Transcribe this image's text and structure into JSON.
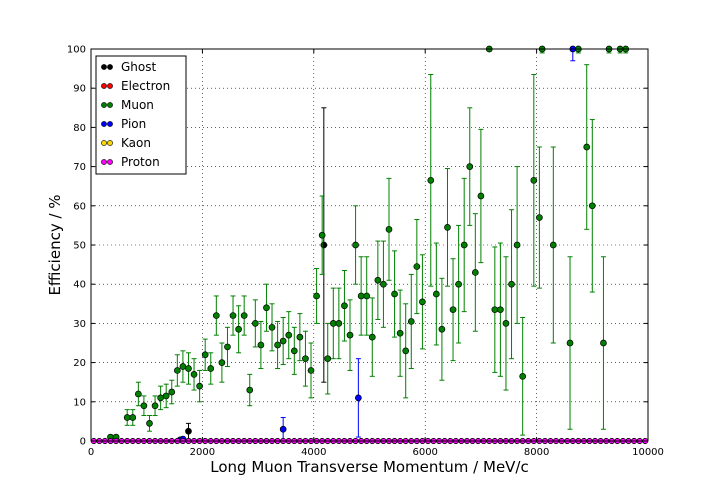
{
  "chart_data": {
    "type": "scatter",
    "xlabel": "Long Muon Transverse Momentum / MeV/c",
    "ylabel": "Efficiency / %",
    "xlim": [
      0,
      10000
    ],
    "ylim": [
      0,
      100
    ],
    "xticks": [
      0,
      2000,
      4000,
      6000,
      8000,
      10000
    ],
    "yticks": [
      0,
      10,
      20,
      30,
      40,
      50,
      60,
      70,
      80,
      90,
      100
    ],
    "grid": true,
    "legend_position": "top-left",
    "series": [
      {
        "name": "Ghost",
        "color": "#000000",
        "points": [
          [
            1750,
            2.5,
            2,
            2
          ],
          [
            4180,
            50,
            35,
            35
          ]
        ],
        "zero_row": [
          0,
          10000,
          100
        ]
      },
      {
        "name": "Electron",
        "color": "#ff0000",
        "points": [],
        "zero_row": [
          0,
          10000,
          100
        ]
      },
      {
        "name": "Muon",
        "color": "#008000",
        "points": [
          [
            350,
            1,
            0.5,
            0.5
          ],
          [
            450,
            1,
            0.5,
            0.5
          ],
          [
            650,
            6,
            2,
            2
          ],
          [
            750,
            6,
            2,
            2
          ],
          [
            850,
            12,
            3,
            3
          ],
          [
            950,
            9,
            2.5,
            2.5
          ],
          [
            1050,
            4.5,
            2,
            2
          ],
          [
            1150,
            9,
            2.5,
            2.5
          ],
          [
            1250,
            11,
            3,
            3
          ],
          [
            1350,
            11.5,
            3,
            3
          ],
          [
            1450,
            12.5,
            3,
            3
          ],
          [
            1550,
            18,
            4,
            4
          ],
          [
            1650,
            19,
            4,
            4
          ],
          [
            1750,
            18.5,
            4,
            4
          ],
          [
            1850,
            17,
            4,
            4
          ],
          [
            1950,
            14,
            4,
            4
          ],
          [
            2050,
            22,
            4,
            4
          ],
          [
            2150,
            18.5,
            4,
            4
          ],
          [
            2250,
            32,
            5,
            5
          ],
          [
            2350,
            20,
            5,
            5
          ],
          [
            2450,
            24,
            5,
            5
          ],
          [
            2550,
            32,
            5,
            5
          ],
          [
            2650,
            28.5,
            6,
            6
          ],
          [
            2750,
            32,
            5,
            5
          ],
          [
            2850,
            13,
            4,
            4
          ],
          [
            2950,
            30,
            6,
            6
          ],
          [
            3050,
            24.5,
            6,
            6
          ],
          [
            3150,
            34,
            6,
            6
          ],
          [
            3250,
            29,
            6,
            6
          ],
          [
            3350,
            24.5,
            6,
            6
          ],
          [
            3450,
            25.5,
            6,
            6
          ],
          [
            3550,
            27,
            6,
            6
          ],
          [
            3650,
            23,
            6,
            6
          ],
          [
            3750,
            26.5,
            6,
            6
          ],
          [
            3850,
            21,
            7,
            7
          ],
          [
            3950,
            18,
            7,
            7
          ],
          [
            4050,
            37,
            7,
            7
          ],
          [
            4150,
            52.5,
            10,
            10
          ],
          [
            4250,
            21,
            9,
            9
          ],
          [
            4350,
            30,
            9,
            9
          ],
          [
            4450,
            30,
            9,
            9
          ],
          [
            4550,
            34.5,
            9,
            9
          ],
          [
            4650,
            27,
            9,
            9
          ],
          [
            4750,
            50,
            10,
            10
          ],
          [
            4850,
            37,
            10,
            10
          ],
          [
            4950,
            37,
            10,
            10
          ],
          [
            5050,
            26.5,
            10,
            10
          ],
          [
            5150,
            41,
            10,
            10
          ],
          [
            5250,
            40,
            11,
            11
          ],
          [
            5350,
            54,
            13,
            13
          ],
          [
            5450,
            37.5,
            11,
            11
          ],
          [
            5550,
            27.5,
            11,
            11
          ],
          [
            5650,
            23,
            12,
            12
          ],
          [
            5750,
            30.5,
            12,
            12
          ],
          [
            5850,
            44.5,
            12,
            12
          ],
          [
            5950,
            35.5,
            12,
            12
          ],
          [
            6100,
            66.5,
            27,
            27
          ],
          [
            6200,
            37.5,
            13,
            13
          ],
          [
            6300,
            28.5,
            13,
            13
          ],
          [
            6400,
            54.5,
            15,
            15
          ],
          [
            6500,
            33.5,
            13,
            13
          ],
          [
            6600,
            40,
            15,
            15
          ],
          [
            6700,
            50,
            17,
            17
          ],
          [
            6800,
            70,
            15,
            15
          ],
          [
            6900,
            43,
            15,
            15
          ],
          [
            7000,
            62.5,
            17,
            17
          ],
          [
            7150,
            100,
            0.5,
            0
          ],
          [
            7250,
            33.5,
            16,
            16
          ],
          [
            7350,
            33.5,
            17,
            17
          ],
          [
            7450,
            30,
            17,
            17
          ],
          [
            7550,
            40,
            19,
            19
          ],
          [
            7650,
            50,
            20,
            20
          ],
          [
            7750,
            16.5,
            15,
            15
          ],
          [
            7950,
            66.5,
            27,
            27
          ],
          [
            8050,
            57,
            18,
            18
          ],
          [
            8100,
            100,
            1,
            0
          ],
          [
            8300,
            50,
            25,
            25
          ],
          [
            8600,
            25,
            22,
            22
          ],
          [
            8750,
            100,
            1,
            0
          ],
          [
            8900,
            75,
            21,
            21
          ],
          [
            9000,
            60,
            22,
            22
          ],
          [
            9200,
            25,
            22,
            22
          ],
          [
            9300,
            100,
            1,
            0
          ],
          [
            9500,
            100,
            1,
            0
          ],
          [
            9600,
            100,
            1,
            0
          ]
        ],
        "zero_row": []
      },
      {
        "name": "Pion",
        "color": "#0000ff",
        "points": [
          [
            1600,
            0.3,
            0.3,
            0.3
          ],
          [
            1650,
            0.5,
            0.4,
            0.4
          ],
          [
            3450,
            3,
            3,
            3
          ],
          [
            4800,
            11,
            10,
            10
          ],
          [
            8650,
            100,
            3,
            0
          ]
        ],
        "zero_row": [
          0,
          10000,
          100
        ]
      },
      {
        "name": "Kaon",
        "color": "#ffd700",
        "points": [],
        "zero_row": [
          0,
          10000,
          100
        ]
      },
      {
        "name": "Proton",
        "color": "#ff00ff",
        "points": [],
        "zero_row": [
          0,
          10000,
          100
        ]
      }
    ]
  }
}
